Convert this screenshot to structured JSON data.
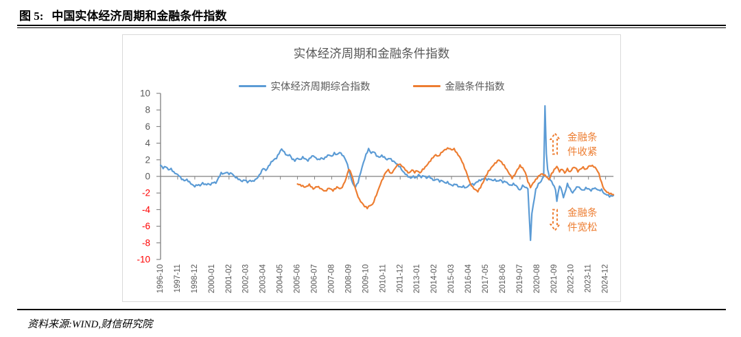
{
  "figure": {
    "label": "图 5:",
    "title": "中国实体经济周期和金融条件指数",
    "source": "资料来源:WIND,财信研究院"
  },
  "colors": {
    "series_blue": "#5B9BD5",
    "series_orange": "#ED7D31",
    "axis_gray": "#7F7F7F",
    "tick_text_gray": "#595959",
    "negative_tick_red": "#FF0000",
    "annotation_orange": "#ED7D31",
    "frame_border": "#D9D9D9"
  },
  "chart": {
    "title": "实体经济周期和金融条件指数",
    "legend": [
      {
        "label": "实体经济周期综合指数",
        "color": "#5B9BD5"
      },
      {
        "label": "金融条件指数",
        "color": "#ED7D31"
      }
    ],
    "annotations": [
      {
        "text": "金融条件收紧",
        "arrow": "up"
      },
      {
        "text": "金融条件宽松",
        "arrow": "down"
      }
    ]
  },
  "chart_data": {
    "type": "line",
    "title": "实体经济周期和金融条件指数",
    "ylim": [
      -10,
      10
    ],
    "y_ticks": [
      10,
      8,
      6,
      4,
      2,
      0,
      -2,
      -4,
      -6,
      -8,
      -10
    ],
    "x_start_month": "1996-10",
    "x_tick_month_step": 13,
    "x_domain_months": [
      0,
      344
    ],
    "x_tick_labels": [
      "1996-10",
      "1997-11",
      "1998-12",
      "2000-01",
      "2001-02",
      "2002-03",
      "2003-04",
      "2004-05",
      "2005-06",
      "2006-07",
      "2007-08",
      "2008-09",
      "2009-10",
      "2010-11",
      "2011-12",
      "2013-01",
      "2014-02",
      "2015-03",
      "2016-04",
      "2017-05",
      "2018-06",
      "2019-07",
      "2020-08",
      "2021-09",
      "2022-10",
      "2023-11",
      "2024-12"
    ],
    "grid": false,
    "legend_position": "top-center",
    "series": [
      {
        "name": "实体经济周期综合指数",
        "color": "#5B9BD5",
        "points": [
          [
            0,
            1.35
          ],
          [
            2,
            1.0
          ],
          [
            4,
            1.2
          ],
          [
            6,
            0.8
          ],
          [
            8,
            0.9
          ],
          [
            10,
            0.5
          ],
          [
            12,
            0.3
          ],
          [
            14,
            0.1
          ],
          [
            16,
            -0.3
          ],
          [
            18,
            -0.5
          ],
          [
            20,
            -0.4
          ],
          [
            22,
            -0.7
          ],
          [
            24,
            -1.0
          ],
          [
            26,
            -1.2
          ],
          [
            28,
            -1.0
          ],
          [
            30,
            -1.1
          ],
          [
            32,
            -0.8
          ],
          [
            34,
            -1.0
          ],
          [
            36,
            -0.9
          ],
          [
            38,
            -1.0
          ],
          [
            40,
            -0.7
          ],
          [
            42,
            -0.8
          ],
          [
            44,
            -0.2
          ],
          [
            46,
            0.4
          ],
          [
            48,
            0.3
          ],
          [
            50,
            0.5
          ],
          [
            52,
            0.3
          ],
          [
            54,
            0.4
          ],
          [
            56,
            0.0
          ],
          [
            58,
            -0.2
          ],
          [
            60,
            -0.4
          ],
          [
            62,
            -0.6
          ],
          [
            64,
            -0.4
          ],
          [
            66,
            -0.7
          ],
          [
            68,
            -0.5
          ],
          [
            70,
            -0.6
          ],
          [
            72,
            -0.4
          ],
          [
            74,
            -0.1
          ],
          [
            76,
            0.4
          ],
          [
            78,
            1.0
          ],
          [
            80,
            0.7
          ],
          [
            82,
            1.2
          ],
          [
            84,
            1.7
          ],
          [
            86,
            2.0
          ],
          [
            88,
            2.2
          ],
          [
            90,
            2.8
          ],
          [
            92,
            3.3
          ],
          [
            94,
            2.9
          ],
          [
            96,
            2.5
          ],
          [
            98,
            2.6
          ],
          [
            100,
            2.1
          ],
          [
            102,
            1.9
          ],
          [
            104,
            2.2
          ],
          [
            106,
            2.0
          ],
          [
            108,
            2.3
          ],
          [
            110,
            2.1
          ],
          [
            112,
            1.9
          ],
          [
            114,
            2.3
          ],
          [
            116,
            2.5
          ],
          [
            118,
            2.2
          ],
          [
            120,
            2.0
          ],
          [
            122,
            2.2
          ],
          [
            124,
            2.1
          ],
          [
            126,
            2.4
          ],
          [
            128,
            2.6
          ],
          [
            130,
            2.4
          ],
          [
            132,
            2.8
          ],
          [
            134,
            2.6
          ],
          [
            136,
            2.9
          ],
          [
            138,
            2.6
          ],
          [
            140,
            2.2
          ],
          [
            142,
            1.4
          ],
          [
            144,
            0.2
          ],
          [
            146,
            -0.9
          ],
          [
            148,
            -1.3
          ],
          [
            150,
            -0.7
          ],
          [
            152,
            0.5
          ],
          [
            154,
            1.6
          ],
          [
            156,
            2.6
          ],
          [
            158,
            3.3
          ],
          [
            160,
            2.8
          ],
          [
            162,
            3.0
          ],
          [
            164,
            2.5
          ],
          [
            166,
            2.3
          ],
          [
            168,
            2.5
          ],
          [
            170,
            2.3
          ],
          [
            172,
            2.0
          ],
          [
            174,
            2.2
          ],
          [
            176,
            1.9
          ],
          [
            178,
            1.7
          ],
          [
            180,
            1.4
          ],
          [
            182,
            1.1
          ],
          [
            184,
            0.6
          ],
          [
            186,
            0.3
          ],
          [
            188,
            0.0
          ],
          [
            190,
            -0.2
          ],
          [
            192,
            0.0
          ],
          [
            194,
            -0.2
          ],
          [
            196,
            0.2
          ],
          [
            198,
            -0.1
          ],
          [
            200,
            0.1
          ],
          [
            202,
            -0.2
          ],
          [
            204,
            0.0
          ],
          [
            206,
            -0.3
          ],
          [
            208,
            -0.5
          ],
          [
            210,
            -0.3
          ],
          [
            212,
            -0.6
          ],
          [
            214,
            -0.5
          ],
          [
            216,
            -0.8
          ],
          [
            218,
            -0.7
          ],
          [
            220,
            -1.0
          ],
          [
            222,
            -1.1
          ],
          [
            224,
            -0.9
          ],
          [
            226,
            -1.2
          ],
          [
            228,
            -1.3
          ],
          [
            230,
            -1.2
          ],
          [
            232,
            -1.4
          ],
          [
            234,
            -1.1
          ],
          [
            236,
            -0.9
          ],
          [
            238,
            -1.0
          ],
          [
            240,
            -0.7
          ],
          [
            242,
            -0.5
          ],
          [
            244,
            -0.4
          ],
          [
            246,
            -0.2
          ],
          [
            248,
            -0.4
          ],
          [
            250,
            -0.3
          ],
          [
            252,
            -0.5
          ],
          [
            254,
            -0.4
          ],
          [
            256,
            -0.6
          ],
          [
            258,
            -0.4
          ],
          [
            260,
            -0.7
          ],
          [
            262,
            -0.6
          ],
          [
            264,
            -0.9
          ],
          [
            266,
            -1.1
          ],
          [
            268,
            -0.9
          ],
          [
            270,
            -1.1
          ],
          [
            273,
            -1.7
          ],
          [
            275,
            -1.1
          ],
          [
            277,
            -1.3
          ],
          [
            279,
            -1.5
          ],
          [
            281,
            -7.7
          ],
          [
            282,
            -4.5
          ],
          [
            283,
            -3.5
          ],
          [
            285,
            -1.6
          ],
          [
            287,
            -0.9
          ],
          [
            289,
            -0.6
          ],
          [
            291,
            0.0
          ],
          [
            292,
            8.5
          ],
          [
            293,
            2.8
          ],
          [
            294,
            0.8
          ],
          [
            295,
            0.2
          ],
          [
            296,
            -0.4
          ],
          [
            298,
            -0.9
          ],
          [
            300,
            -1.6
          ],
          [
            301,
            -3.0
          ],
          [
            302,
            -2.0
          ],
          [
            303,
            -1.1
          ],
          [
            305,
            -1.8
          ],
          [
            306,
            -2.6
          ],
          [
            308,
            -1.5
          ],
          [
            309,
            -0.9
          ],
          [
            311,
            -1.5
          ],
          [
            313,
            -2.0
          ],
          [
            315,
            -1.5
          ],
          [
            317,
            -1.2
          ],
          [
            319,
            -1.5
          ],
          [
            321,
            -1.7
          ],
          [
            323,
            -1.4
          ],
          [
            325,
            -1.5
          ],
          [
            327,
            -1.7
          ],
          [
            329,
            -1.4
          ],
          [
            331,
            -1.5
          ],
          [
            333,
            -1.7
          ],
          [
            335,
            -1.6
          ],
          [
            337,
            -2.1
          ],
          [
            339,
            -2.2
          ],
          [
            341,
            -2.4
          ],
          [
            344,
            -2.3
          ]
        ]
      },
      {
        "name": "金融条件指数",
        "color": "#ED7D31",
        "points": [
          [
            104,
            -0.9
          ],
          [
            107,
            -1.1
          ],
          [
            110,
            -1.3
          ],
          [
            113,
            -1.0
          ],
          [
            116,
            -1.5
          ],
          [
            119,
            -1.2
          ],
          [
            122,
            -1.5
          ],
          [
            125,
            -1.8
          ],
          [
            128,
            -1.4
          ],
          [
            131,
            -1.7
          ],
          [
            134,
            -1.3
          ],
          [
            137,
            -1.5
          ],
          [
            139,
            -1.0
          ],
          [
            141,
            -0.2
          ],
          [
            143,
            0.9
          ],
          [
            145,
            0.3
          ],
          [
            147,
            -0.9
          ],
          [
            149,
            -2.0
          ],
          [
            151,
            -2.8
          ],
          [
            153,
            -3.2
          ],
          [
            155,
            -3.6
          ],
          [
            157,
            -3.8
          ],
          [
            159,
            -3.5
          ],
          [
            161,
            -3.4
          ],
          [
            163,
            -2.6
          ],
          [
            165,
            -1.8
          ],
          [
            167,
            -0.9
          ],
          [
            169,
            -0.2
          ],
          [
            171,
            0.5
          ],
          [
            173,
            0.8
          ],
          [
            175,
            0.3
          ],
          [
            177,
            0.7
          ],
          [
            179,
            1.2
          ],
          [
            181,
            1.5
          ],
          [
            183,
            1.3
          ],
          [
            185,
            1.0
          ],
          [
            187,
            0.6
          ],
          [
            189,
            0.4
          ],
          [
            191,
            0.8
          ],
          [
            193,
            0.5
          ],
          [
            195,
            0.7
          ],
          [
            197,
            0.4
          ],
          [
            199,
            0.8
          ],
          [
            201,
            1.1
          ],
          [
            203,
            1.5
          ],
          [
            205,
            1.9
          ],
          [
            207,
            2.3
          ],
          [
            209,
            2.6
          ],
          [
            211,
            2.4
          ],
          [
            213,
            2.8
          ],
          [
            215,
            3.1
          ],
          [
            217,
            3.3
          ],
          [
            219,
            3.4
          ],
          [
            221,
            3.2
          ],
          [
            223,
            3.3
          ],
          [
            225,
            2.8
          ],
          [
            227,
            2.4
          ],
          [
            229,
            1.8
          ],
          [
            231,
            1.0
          ],
          [
            233,
            0.2
          ],
          [
            235,
            -0.8
          ],
          [
            237,
            -1.3
          ],
          [
            239,
            -1.6
          ],
          [
            241,
            -1.8
          ],
          [
            243,
            -1.3
          ],
          [
            245,
            -0.7
          ],
          [
            247,
            0.0
          ],
          [
            249,
            0.6
          ],
          [
            251,
            1.0
          ],
          [
            253,
            1.4
          ],
          [
            255,
            1.7
          ],
          [
            257,
            2.0
          ],
          [
            259,
            1.7
          ],
          [
            261,
            1.3
          ],
          [
            263,
            0.8
          ],
          [
            265,
            0.3
          ],
          [
            267,
            -0.2
          ],
          [
            269,
            0.2
          ],
          [
            271,
            0.8
          ],
          [
            273,
            1.3
          ],
          [
            275,
            1.0
          ],
          [
            277,
            0.5
          ],
          [
            279,
            -0.6
          ],
          [
            281,
            -1.3
          ],
          [
            283,
            -0.8
          ],
          [
            285,
            -0.4
          ],
          [
            287,
            0.0
          ],
          [
            289,
            0.3
          ],
          [
            291,
            0.2
          ],
          [
            293,
            0.0
          ],
          [
            295,
            -0.4
          ],
          [
            297,
            0.3
          ],
          [
            299,
            0.8
          ],
          [
            301,
            1.2
          ],
          [
            303,
            0.6
          ],
          [
            305,
            0.9
          ],
          [
            307,
            0.4
          ],
          [
            309,
            0.9
          ],
          [
            311,
            0.5
          ],
          [
            313,
            1.0
          ],
          [
            315,
            1.1
          ],
          [
            317,
            0.6
          ],
          [
            319,
            0.9
          ],
          [
            321,
            1.1
          ],
          [
            323,
            0.8
          ],
          [
            325,
            1.2
          ],
          [
            327,
            1.3
          ],
          [
            329,
            1.2
          ],
          [
            331,
            0.9
          ],
          [
            333,
            0.3
          ],
          [
            335,
            -0.8
          ],
          [
            337,
            -1.6
          ],
          [
            340,
            -2.0
          ],
          [
            344,
            -2.2
          ]
        ]
      }
    ]
  }
}
